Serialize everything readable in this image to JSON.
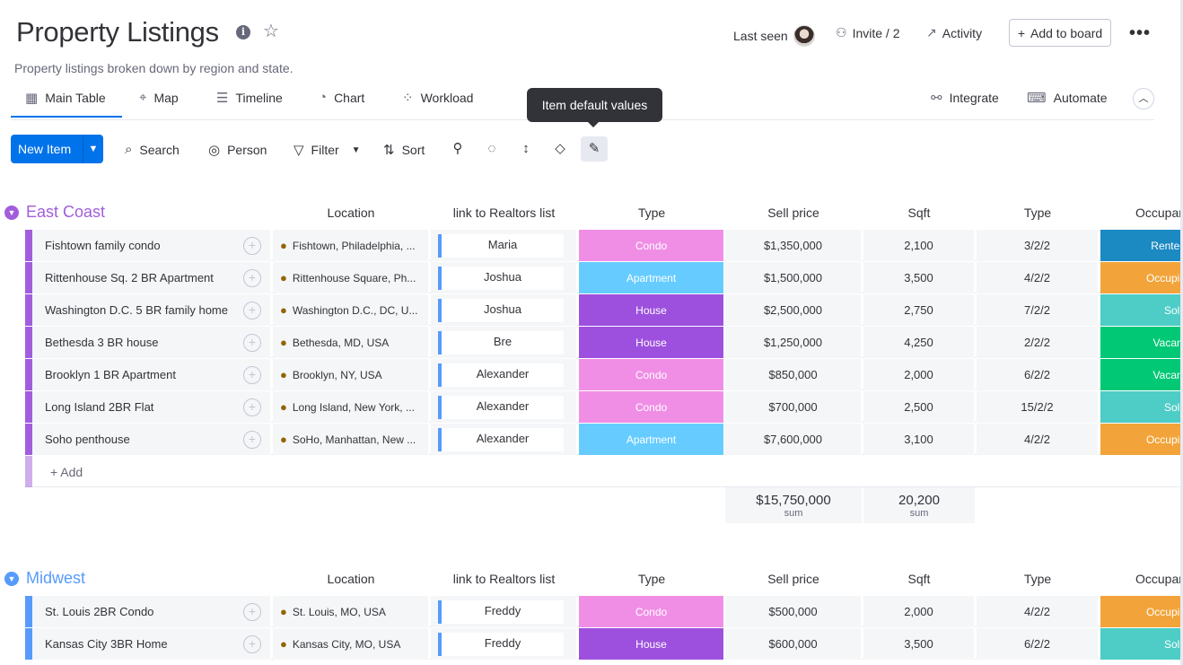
{
  "header": {
    "title": "Property Listings",
    "subtitle": "Property listings broken down by region and state.",
    "last_seen_label": "Last seen",
    "invite_label": "Invite / 2",
    "activity_label": "Activity",
    "add_to_board_label": "Add to board",
    "more_label": "•••"
  },
  "tabs": [
    {
      "label": "Main Table",
      "icon": "table-icon"
    },
    {
      "label": "Map",
      "icon": "map-pin-icon"
    },
    {
      "label": "Timeline",
      "icon": "timeline-icon"
    },
    {
      "label": "Chart",
      "icon": "chart-icon"
    },
    {
      "label": "Workload",
      "icon": "workload-icon"
    }
  ],
  "right_tabs": {
    "integrate": "Integrate",
    "automate": "Automate"
  },
  "tooltip": "Item default values",
  "toolbar": {
    "new_item": "New Item",
    "search": "Search",
    "person": "Person",
    "filter": "Filter",
    "sort": "Sort"
  },
  "columns": {
    "location": "Location",
    "realtors": "link to Realtors list",
    "type": "Type",
    "price": "Sell price",
    "sqft": "Sqft",
    "type2": "Type",
    "occupancy": "Occupar"
  },
  "groups": [
    {
      "name": "East Coast",
      "color": "#a25ddc",
      "rows": [
        {
          "name": "Fishtown family condo",
          "location": "Fishtown, Philadelphia, ...",
          "realtor": "Maria",
          "type": "Condo",
          "price": "$1,350,000",
          "sqft": "2,100",
          "type2": "3/2/2",
          "status": "Rented"
        },
        {
          "name": "Rittenhouse Sq. 2 BR Apartment",
          "location": "Rittenhouse Square, Ph...",
          "realtor": "Joshua",
          "type": "Apartment",
          "price": "$1,500,000",
          "sqft": "3,500",
          "type2": "4/2/2",
          "status": "Occupie"
        },
        {
          "name": "Washington D.C. 5 BR family home",
          "location": "Washington D.C., DC, U...",
          "realtor": "Joshua",
          "type": "House",
          "price": "$2,500,000",
          "sqft": "2,750",
          "type2": "7/2/2",
          "status": "Sold"
        },
        {
          "name": "Bethesda 3 BR house",
          "location": "Bethesda, MD, USA",
          "realtor": "Bre",
          "type": "House",
          "price": "$1,250,000",
          "sqft": "4,250",
          "type2": "2/2/2",
          "status": "Vacant"
        },
        {
          "name": "Brooklyn 1 BR Apartment",
          "location": "Brooklyn, NY, USA",
          "realtor": "Alexander",
          "type": "Condo",
          "price": "$850,000",
          "sqft": "2,000",
          "type2": "6/2/2",
          "status": "Vacant"
        },
        {
          "name": "Long Island 2BR Flat",
          "location": "Long Island, New York, ...",
          "realtor": "Alexander",
          "type": "Condo",
          "price": "$700,000",
          "sqft": "2,500",
          "type2": "15/2/2",
          "status": "Sold"
        },
        {
          "name": "Soho penthouse",
          "location": "SoHo, Manhattan, New ...",
          "realtor": "Alexander",
          "type": "Apartment",
          "price": "$7,600,000",
          "sqft": "3,100",
          "type2": "4/2/2",
          "status": "Occupie"
        }
      ],
      "add_label": "+ Add",
      "sum_price": "$15,750,000",
      "sum_sqft": "20,200",
      "sum_label": "sum"
    },
    {
      "name": "Midwest",
      "color": "#579bfc",
      "rows": [
        {
          "name": "St. Louis 2BR Condo",
          "location": "St. Louis, MO, USA",
          "realtor": "Freddy",
          "type": "Condo",
          "price": "$500,000",
          "sqft": "2,000",
          "type2": "4/2/2",
          "status": "Occupie"
        },
        {
          "name": "Kansas City 3BR Home",
          "location": "Kansas City, MO, USA",
          "realtor": "Freddy",
          "type": "House",
          "price": "$600,000",
          "sqft": "3,500",
          "type2": "6/2/2",
          "status": "Sold"
        }
      ]
    }
  ],
  "type_colors": {
    "Condo": "#f08ee6",
    "Apartment": "#66ccff",
    "House": "#9d50dd"
  },
  "status_colors": {
    "Rented": "#1b89c2",
    "Occupie": "#f2a43a",
    "Sold": "#4eccc6",
    "Vacant": "#00c875"
  }
}
